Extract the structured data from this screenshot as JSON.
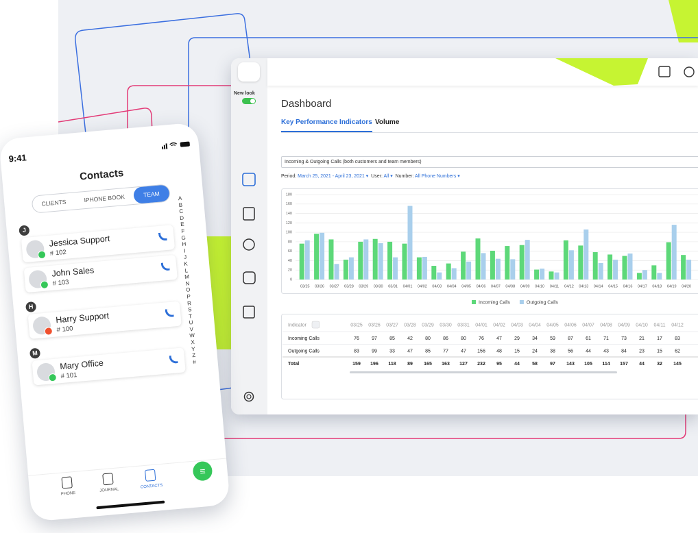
{
  "phone": {
    "time": "9:41",
    "title": "Contacts",
    "tabs": [
      "CLIENTS",
      "IPHONE BOOK",
      "TEAM"
    ],
    "index": [
      "A",
      "B",
      "C",
      "D",
      "E",
      "F",
      "G",
      "H",
      "I",
      "J",
      "K",
      "L",
      "M",
      "N",
      "O",
      "P",
      "R",
      "S",
      "T",
      "U",
      "V",
      "W",
      "X",
      "Y",
      "Z",
      "#"
    ],
    "groups": [
      {
        "letter": "J",
        "contacts": [
          {
            "name": "Jessica Support",
            "ext": "# 102"
          },
          {
            "name": "John Sales",
            "ext": "# 103"
          }
        ]
      },
      {
        "letter": "H",
        "contacts": [
          {
            "name": "Harry Support",
            "ext": "# 100"
          }
        ]
      },
      {
        "letter": "M",
        "contacts": [
          {
            "name": "Mary Office",
            "ext": "# 101"
          }
        ]
      }
    ],
    "nav": [
      "PHONE",
      "JOURNAL",
      "CONTACTS"
    ]
  },
  "dashboard": {
    "toggle_label": "New look",
    "title": "Dashboard",
    "tabs": [
      "Key Performance Indicators",
      "Volume"
    ],
    "selector": "Incoming & Outgoing Calls (both customers and team members)",
    "filters": [
      {
        "label": "Period:",
        "value": "March 25, 2021 - April 23, 2021"
      },
      {
        "label": "User:",
        "value": "All"
      },
      {
        "label": "Number:",
        "value": "All Phone Numbers"
      }
    ],
    "table": {
      "header": [
        "Indicator",
        "03/25",
        "03/26",
        "03/27",
        "03/28",
        "03/29",
        "03/30",
        "03/31",
        "04/01",
        "04/02",
        "04/03",
        "04/04",
        "04/05",
        "04/06",
        "04/07",
        "04/08",
        "04/09",
        "04/10",
        "04/11",
        "04/12"
      ],
      "rows": [
        [
          "Incoming Calls",
          76,
          97,
          85,
          42,
          80,
          86,
          80,
          76,
          47,
          29,
          34,
          59,
          87,
          61,
          71,
          73,
          21,
          17,
          83
        ],
        [
          "Outgoing Calls",
          83,
          99,
          33,
          47,
          85,
          77,
          47,
          156,
          48,
          15,
          24,
          38,
          56,
          44,
          43,
          84,
          23,
          15,
          62
        ],
        [
          "Total",
          159,
          196,
          118,
          89,
          165,
          163,
          127,
          232,
          95,
          44,
          58,
          97,
          143,
          105,
          114,
          157,
          44,
          32,
          145
        ]
      ]
    }
  },
  "chart_data": {
    "type": "bar",
    "categories": [
      "03/25",
      "03/26",
      "03/27",
      "03/28",
      "03/29",
      "03/30",
      "03/31",
      "04/01",
      "04/02",
      "04/03",
      "04/04",
      "04/05",
      "04/06",
      "04/07",
      "04/08",
      "04/09",
      "04/10",
      "04/11",
      "04/12",
      "04/13",
      "04/14",
      "04/15",
      "04/16",
      "04/17",
      "04/18",
      "04/19",
      "04/20"
    ],
    "series": [
      {
        "name": "Incoming Calls",
        "color": "#5dd879",
        "values": [
          76,
          97,
          85,
          42,
          80,
          86,
          80,
          76,
          47,
          29,
          34,
          59,
          87,
          61,
          71,
          73,
          21,
          17,
          83,
          72,
          58,
          53,
          50,
          14,
          30,
          79,
          52
        ]
      },
      {
        "name": "Outgoing Calls",
        "color": "#a9cfec",
        "values": [
          83,
          99,
          33,
          47,
          85,
          77,
          47,
          156,
          48,
          15,
          24,
          38,
          56,
          44,
          43,
          84,
          23,
          15,
          62,
          106,
          35,
          42,
          55,
          20,
          14,
          116,
          42
        ]
      }
    ],
    "ylim": [
      0,
      180
    ],
    "yticks": [
      0,
      20,
      40,
      60,
      80,
      100,
      120,
      140,
      160,
      180
    ],
    "grid": true
  }
}
